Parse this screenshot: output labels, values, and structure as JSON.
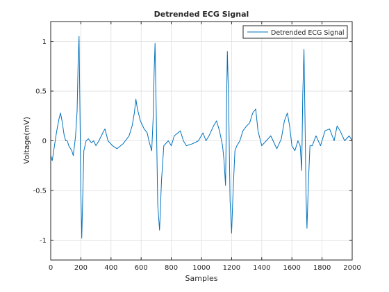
{
  "chart_data": {
    "type": "line",
    "title": "Detrended ECG Signal",
    "xlabel": "Samples",
    "ylabel": "Voltage(mV)",
    "xlim": [
      0,
      2000
    ],
    "ylim": [
      -1.2,
      1.2
    ],
    "x_ticks": [
      0,
      200,
      400,
      600,
      800,
      1000,
      1200,
      1400,
      1600,
      1800,
      2000
    ],
    "x_tick_labels": [
      "0",
      "200",
      "400",
      "600",
      "800",
      "1000",
      "1200",
      "1400",
      "1600",
      "1800",
      "2000"
    ],
    "y_ticks": [
      -1,
      -0.5,
      0,
      0.5,
      1
    ],
    "y_tick_labels": [
      "-1",
      "-0.5",
      "0",
      "0.5",
      "1"
    ],
    "grid": true,
    "legend_position": "top-right",
    "series": [
      {
        "name": "Detrended ECG Signal",
        "color": "#0072BD",
        "x": [
          0,
          10,
          25,
          40,
          55,
          65,
          75,
          90,
          100,
          110,
          120,
          140,
          150,
          165,
          175,
          182,
          188,
          194,
          200,
          206,
          212,
          220,
          235,
          250,
          270,
          285,
          300,
          320,
          345,
          360,
          380,
          410,
          440,
          480,
          520,
          540,
          555,
          565,
          575,
          595,
          620,
          640,
          655,
          670,
          680,
          686,
          692,
          700,
          710,
          722,
          735,
          750,
          780,
          800,
          820,
          860,
          880,
          900,
          940,
          980,
          1010,
          1030,
          1050,
          1080,
          1100,
          1120,
          1140,
          1150,
          1160,
          1166,
          1172,
          1180,
          1190,
          1200,
          1210,
          1222,
          1235,
          1255,
          1275,
          1300,
          1320,
          1340,
          1360,
          1375,
          1400,
          1430,
          1460,
          1500,
          1530,
          1550,
          1570,
          1585,
          1600,
          1620,
          1640,
          1655,
          1665,
          1672,
          1680,
          1686,
          1694,
          1700,
          1710,
          1720,
          1735,
          1760,
          1790,
          1820,
          1850,
          1880,
          1900,
          1920,
          1950,
          1980,
          2000
        ],
        "y": [
          -0.15,
          -0.2,
          -0.05,
          0.1,
          0.22,
          0.28,
          0.2,
          0.05,
          0.0,
          0.0,
          -0.05,
          -0.1,
          -0.15,
          0.05,
          0.3,
          0.8,
          1.05,
          0.3,
          -0.5,
          -0.98,
          -0.6,
          -0.1,
          0.0,
          0.02,
          -0.02,
          0.0,
          -0.05,
          0.0,
          0.08,
          0.12,
          0.0,
          -0.05,
          -0.08,
          -0.03,
          0.05,
          0.15,
          0.28,
          0.42,
          0.32,
          0.2,
          0.12,
          0.08,
          -0.02,
          -0.1,
          0.25,
          0.7,
          0.98,
          0.3,
          -0.65,
          -0.9,
          -0.4,
          -0.05,
          0.0,
          -0.05,
          0.05,
          0.1,
          0.0,
          -0.05,
          -0.03,
          0.0,
          0.08,
          0.0,
          0.05,
          0.15,
          0.2,
          0.1,
          -0.05,
          -0.2,
          -0.45,
          0.3,
          0.9,
          0.4,
          -0.6,
          -0.93,
          -0.5,
          -0.1,
          -0.05,
          0.0,
          0.1,
          0.15,
          0.18,
          0.28,
          0.32,
          0.1,
          -0.05,
          0.0,
          0.05,
          -0.08,
          0.02,
          0.2,
          0.28,
          0.15,
          -0.05,
          -0.1,
          0.0,
          -0.05,
          -0.3,
          0.45,
          0.92,
          0.3,
          -0.55,
          -0.88,
          -0.4,
          -0.05,
          -0.05,
          0.05,
          -0.05,
          0.1,
          0.12,
          0.0,
          0.15,
          0.1,
          0.0,
          0.05,
          0.0
        ]
      }
    ]
  }
}
